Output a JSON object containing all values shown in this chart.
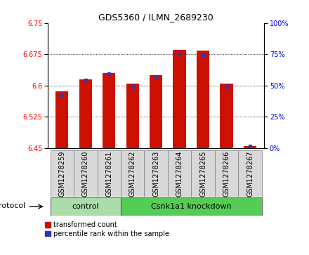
{
  "title": "GDS5360 / ILMN_2689230",
  "samples": [
    "GSM1278259",
    "GSM1278260",
    "GSM1278261",
    "GSM1278262",
    "GSM1278263",
    "GSM1278264",
    "GSM1278265",
    "GSM1278266",
    "GSM1278267"
  ],
  "red_values": [
    6.585,
    6.615,
    6.63,
    6.605,
    6.625,
    6.685,
    6.683,
    6.605,
    6.455
  ],
  "blue_values": [
    6.575,
    6.613,
    6.628,
    6.597,
    6.622,
    6.675,
    6.674,
    6.597,
    6.455
  ],
  "ylim_left": [
    6.45,
    6.75
  ],
  "ylim_right": [
    0,
    100
  ],
  "yticks_left": [
    6.45,
    6.525,
    6.6,
    6.675,
    6.75
  ],
  "yticks_right": [
    0,
    25,
    50,
    75,
    100
  ],
  "baseline": 6.45,
  "n_control": 3,
  "control_label": "control",
  "knockdown_label": "Csnk1a1 knockdown",
  "protocol_label": "protocol",
  "legend_red": "transformed count",
  "legend_blue": "percentile rank within the sample",
  "bar_color": "#cc1100",
  "blue_color": "#3333bb",
  "control_bg": "#aaddaa",
  "knockdown_bg": "#55cc55",
  "sample_box_bg": "#d8d8d8",
  "bar_width": 0.55,
  "title_fontsize": 9,
  "tick_fontsize": 7,
  "label_fontsize": 7,
  "group_fontsize": 8,
  "proto_fontsize": 8,
  "legend_fontsize": 7
}
